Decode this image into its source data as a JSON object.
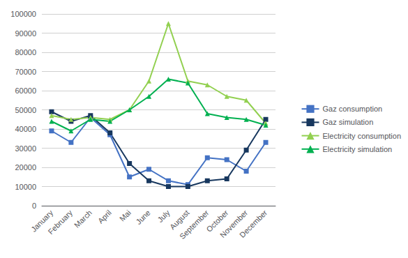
{
  "chart_data": {
    "type": "line",
    "categories": [
      "January",
      "February",
      "March",
      "April",
      "Mai",
      "June",
      "July",
      "August",
      "September",
      "October",
      "November",
      "December"
    ],
    "series": [
      {
        "name": "Gaz consumption",
        "color": "#4472C4",
        "marker": "square",
        "values": [
          39000,
          33000,
          46000,
          37000,
          15000,
          19000,
          13000,
          11000,
          25000,
          24000,
          18000,
          33000
        ]
      },
      {
        "name": "Gaz simulation",
        "color": "#17375E",
        "marker": "square",
        "values": [
          49000,
          44000,
          47000,
          38000,
          22000,
          13000,
          10000,
          10000,
          13000,
          14000,
          29000,
          45000
        ]
      },
      {
        "name": "Electricity consumption",
        "color": "#92D050",
        "marker": "triangle",
        "values": [
          47000,
          45000,
          46000,
          45000,
          50000,
          65000,
          95000,
          65000,
          63000,
          57000,
          55000,
          43000
        ]
      },
      {
        "name": "Electricity simulation",
        "color": "#00B050",
        "marker": "triangle",
        "values": [
          44000,
          39000,
          45000,
          44000,
          50000,
          57000,
          66000,
          64000,
          48000,
          46000,
          45000,
          42000
        ]
      }
    ],
    "ylim": [
      0,
      100000
    ],
    "yticks": [
      0,
      10000,
      20000,
      30000,
      40000,
      50000,
      60000,
      70000,
      80000,
      90000,
      100000
    ],
    "grid": true,
    "legend": "right"
  }
}
